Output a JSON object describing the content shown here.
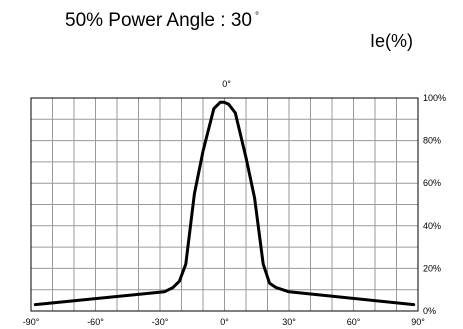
{
  "chart_data": {
    "type": "line",
    "title": "50% Power Angle : 30",
    "title_degree_mark": "°",
    "unit_label": "Ie(%)",
    "xlim": [
      -90,
      90
    ],
    "ylim": [
      0,
      100
    ],
    "grid": true,
    "x_ticks": [
      -90,
      -60,
      -30,
      0,
      30,
      60,
      90
    ],
    "x_tick_labels": [
      "-90°",
      "-60°",
      "-30°",
      "0°",
      "30°",
      "60°",
      "90°"
    ],
    "y_ticks": [
      0,
      20,
      40,
      60,
      80,
      100
    ],
    "y_tick_labels": [
      "0%",
      "20%",
      "40%",
      "60%",
      "80%",
      "100%"
    ],
    "series": [
      {
        "x": [
          -88,
          -28,
          -24,
          -21,
          -18,
          -14,
          -10,
          -5,
          -2,
          0,
          2,
          5,
          10,
          14,
          18,
          21,
          24,
          30,
          88
        ],
        "y": [
          3,
          9,
          11,
          14,
          22,
          55,
          75,
          95,
          98,
          98,
          97,
          93,
          72,
          53,
          22,
          13,
          11,
          9,
          3
        ]
      }
    ]
  }
}
